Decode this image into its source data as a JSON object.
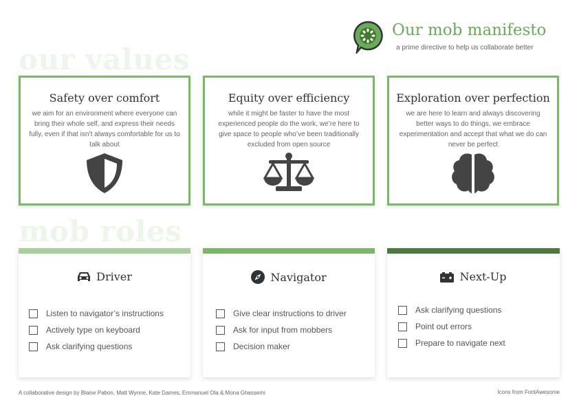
{
  "header": {
    "title": "Our mob manifesto",
    "subtitle": "a prime directive to help us collaborate better",
    "logo": "cucumber-speech-bubble-logo",
    "brand_color": "#6aaa5a"
  },
  "sections": {
    "values_heading": "our values",
    "roles_heading": "mob roles"
  },
  "values": [
    {
      "title": "Safety over comfort",
      "description": "we aim for an environment where everyone can bring their whole self, and express their needs fully, even if that isn’t always comfortable for us to talk about",
      "icon": "shield-icon"
    },
    {
      "title": "Equity over efficiency",
      "description": "while it might be faster to have the most experienced people do the work, we’re here to give space to people who’ve been traditionally excluded from open source",
      "icon": "balance-scale-icon"
    },
    {
      "title": "Exploration over perfection",
      "description": "we are here to learn and always discovering better ways to do things, we embrace experimentation and accept that what we do can never be perfect",
      "icon": "brain-icon"
    }
  ],
  "roles": [
    {
      "name": "Driver",
      "icon": "car-icon",
      "bar_color": "#a8cf9c",
      "items": [
        "Listen to navigator’s instructions",
        "Actively type on keyboard",
        "Ask clarifying questions"
      ]
    },
    {
      "name": "Navigator",
      "icon": "compass-icon",
      "bar_color": "#7ab868",
      "items": [
        "Give clear instructions to driver",
        "Ask for input from mobbers",
        "Decision maker"
      ]
    },
    {
      "name": "Next-Up",
      "icon": "car-battery-icon",
      "bar_color": "#4d7a40",
      "items": [
        "Ask clarifying questions",
        "Point out errors",
        "Prepare to navigate next"
      ]
    }
  ],
  "footer": {
    "credit": "A collaborative design  by Blaise Pabon, Matt Wynne, Kate Dames, Emmanuel  Ola & Mona Ghassemi",
    "icons_credit": "Icons from FontAwesome"
  }
}
